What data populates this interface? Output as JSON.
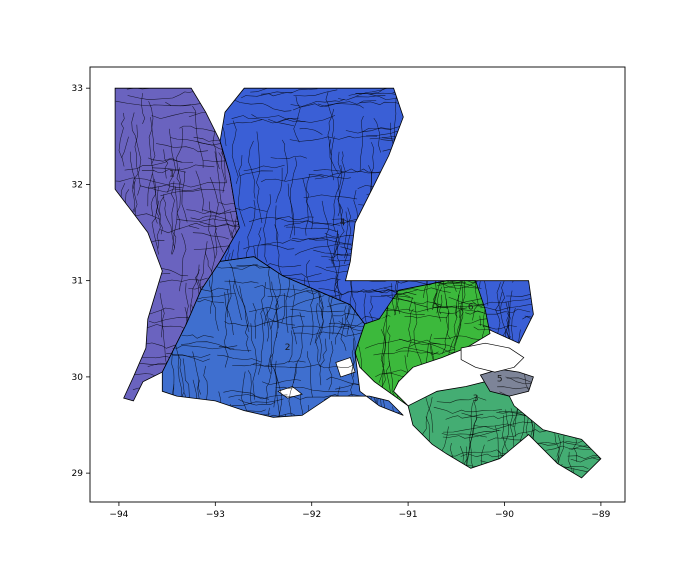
{
  "chart_data": {
    "type": "map",
    "title": "",
    "xlabel": "",
    "ylabel": "",
    "xlim": [
      -94.3,
      -88.75
    ],
    "ylim": [
      28.7,
      33.22
    ],
    "x_ticks": [
      -94,
      -93,
      -92,
      -91,
      -90,
      -89
    ],
    "y_ticks": [
      29,
      30,
      31,
      32,
      33
    ],
    "x_tick_labels": [
      "−94",
      "−93",
      "−92",
      "−91",
      "−90",
      "−89"
    ],
    "y_tick_labels": [
      "29",
      "30",
      "31",
      "32",
      "33"
    ],
    "grid": false,
    "legend": "none",
    "districts": [
      {
        "id": "1",
        "label": "1",
        "color": "#6a63bf",
        "label_lon": -93.45,
        "label_lat": 32.08,
        "outline": [
          [
            -94.04,
            33.0
          ],
          [
            -93.25,
            33.0
          ],
          [
            -93.1,
            32.75
          ],
          [
            -92.95,
            32.45
          ],
          [
            -92.85,
            32.1
          ],
          [
            -92.8,
            31.8
          ],
          [
            -92.75,
            31.55
          ],
          [
            -92.95,
            31.2
          ],
          [
            -93.15,
            30.9
          ],
          [
            -93.3,
            30.55
          ],
          [
            -93.4,
            30.35
          ],
          [
            -93.5,
            30.15
          ],
          [
            -93.55,
            30.05
          ],
          [
            -93.75,
            29.95
          ],
          [
            -93.85,
            29.75
          ],
          [
            -93.95,
            29.78
          ],
          [
            -93.85,
            30.0
          ],
          [
            -93.72,
            30.3
          ],
          [
            -93.7,
            30.6
          ],
          [
            -93.55,
            31.1
          ],
          [
            -93.7,
            31.5
          ],
          [
            -93.85,
            31.7
          ],
          [
            -94.04,
            31.95
          ]
        ]
      },
      {
        "id": "2",
        "label": "2",
        "color": "#3f6fcf",
        "label_lon": -92.25,
        "label_lat": 30.28,
        "outline": [
          [
            -92.95,
            31.2
          ],
          [
            -92.6,
            31.25
          ],
          [
            -92.3,
            31.05
          ],
          [
            -91.95,
            30.9
          ],
          [
            -91.6,
            30.75
          ],
          [
            -91.45,
            30.55
          ],
          [
            -91.55,
            30.25
          ],
          [
            -91.5,
            29.85
          ],
          [
            -91.3,
            29.7
          ],
          [
            -91.05,
            29.6
          ],
          [
            -91.2,
            29.75
          ],
          [
            -91.4,
            29.8
          ],
          [
            -91.8,
            29.8
          ],
          [
            -92.1,
            29.6
          ],
          [
            -92.4,
            29.58
          ],
          [
            -92.7,
            29.65
          ],
          [
            -93.0,
            29.75
          ],
          [
            -93.4,
            29.8
          ],
          [
            -93.55,
            29.85
          ],
          [
            -93.55,
            30.05
          ],
          [
            -93.5,
            30.15
          ],
          [
            -93.4,
            30.35
          ],
          [
            -93.3,
            30.55
          ],
          [
            -93.15,
            30.9
          ]
        ]
      },
      {
        "id": "4",
        "label": "4",
        "color": "#3a5fd6",
        "label_lon": -91.68,
        "label_lat": 31.58,
        "outline": [
          [
            -92.7,
            33.0
          ],
          [
            -91.15,
            33.0
          ],
          [
            -91.05,
            32.7
          ],
          [
            -91.2,
            32.3
          ],
          [
            -91.35,
            32.0
          ],
          [
            -91.55,
            31.6
          ],
          [
            -91.6,
            31.2
          ],
          [
            -91.65,
            31.0
          ],
          [
            -89.75,
            31.0
          ],
          [
            -89.7,
            30.65
          ],
          [
            -89.85,
            30.35
          ],
          [
            -90.4,
            30.6
          ],
          [
            -90.9,
            30.7
          ],
          [
            -91.3,
            30.6
          ],
          [
            -91.45,
            30.55
          ],
          [
            -91.6,
            30.75
          ],
          [
            -91.95,
            30.9
          ],
          [
            -92.3,
            31.05
          ],
          [
            -92.6,
            31.25
          ],
          [
            -92.95,
            31.2
          ],
          [
            -92.75,
            31.55
          ],
          [
            -92.8,
            31.8
          ],
          [
            -92.85,
            32.1
          ],
          [
            -92.95,
            32.45
          ],
          [
            -92.9,
            32.75
          ]
        ]
      },
      {
        "id": "6",
        "label": "6",
        "color": "#3cb93c",
        "label_lon": -90.35,
        "label_lat": 30.7,
        "outline": [
          [
            -91.1,
            30.9
          ],
          [
            -90.6,
            31.0
          ],
          [
            -90.3,
            31.0
          ],
          [
            -90.2,
            30.7
          ],
          [
            -90.15,
            30.45
          ],
          [
            -90.4,
            30.3
          ],
          [
            -90.65,
            30.2
          ],
          [
            -90.95,
            30.1
          ],
          [
            -91.1,
            29.95
          ],
          [
            -91.15,
            29.85
          ],
          [
            -91.0,
            29.7
          ],
          [
            -91.35,
            29.95
          ],
          [
            -91.5,
            30.1
          ],
          [
            -91.55,
            30.25
          ],
          [
            -91.45,
            30.55
          ],
          [
            -91.3,
            30.6
          ]
        ]
      },
      {
        "id": "3",
        "label": "3",
        "color": "#44ad73",
        "label_lon": -90.3,
        "label_lat": 29.75,
        "outline": [
          [
            -91.0,
            29.7
          ],
          [
            -90.7,
            29.85
          ],
          [
            -90.4,
            29.9
          ],
          [
            -90.2,
            29.95
          ],
          [
            -90.0,
            29.9
          ],
          [
            -89.9,
            29.7
          ],
          [
            -89.6,
            29.45
          ],
          [
            -89.2,
            29.35
          ],
          [
            -89.0,
            29.15
          ],
          [
            -89.2,
            28.95
          ],
          [
            -89.45,
            29.1
          ],
          [
            -89.75,
            29.4
          ],
          [
            -90.05,
            29.15
          ],
          [
            -90.35,
            29.05
          ],
          [
            -90.6,
            29.2
          ],
          [
            -90.75,
            29.3
          ],
          [
            -90.95,
            29.5
          ]
        ]
      },
      {
        "id": "5",
        "label": "5",
        "color": "#7d8498",
        "label_lon": -90.05,
        "label_lat": 29.95,
        "outline": [
          [
            -90.25,
            30.02
          ],
          [
            -90.05,
            30.08
          ],
          [
            -89.85,
            30.05
          ],
          [
            -89.7,
            30.0
          ],
          [
            -89.75,
            29.85
          ],
          [
            -89.95,
            29.8
          ],
          [
            -90.15,
            29.85
          ]
        ]
      }
    ]
  }
}
